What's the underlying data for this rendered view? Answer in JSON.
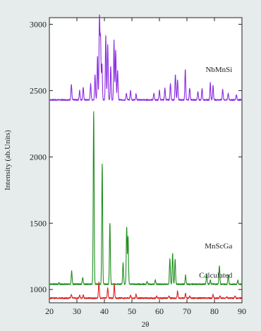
{
  "chart_data": {
    "type": "line",
    "title": "",
    "xlabel": "2θ",
    "ylabel": "Intensity (ab.Units)",
    "xlim": [
      20,
      90
    ],
    "ylim": [
      900,
      3050
    ],
    "grid": false,
    "legend": "none",
    "x_ticks": [
      "20",
      "30",
      "40",
      "50",
      "60",
      "70",
      "80",
      "90"
    ],
    "y_ticks": [
      "1000",
      "1500",
      "2000",
      "2500",
      "3000"
    ],
    "background": "#e6eceb",
    "plot_background": "#ffffff",
    "series": [
      {
        "name": "NbMnSi",
        "color": "#8b2be2",
        "baseline": 2430,
        "peaks": [
          [
            28.0,
            2545
          ],
          [
            31.0,
            2500
          ],
          [
            32.3,
            2525
          ],
          [
            35.0,
            2550
          ],
          [
            36.6,
            2620
          ],
          [
            37.5,
            2760
          ],
          [
            38.2,
            3050
          ],
          [
            38.6,
            2900
          ],
          [
            39.1,
            2700
          ],
          [
            40.5,
            2920
          ],
          [
            41.2,
            2850
          ],
          [
            42.3,
            2680
          ],
          [
            43.5,
            2880
          ],
          [
            44.1,
            2800
          ],
          [
            44.8,
            2650
          ],
          [
            48.0,
            2480
          ],
          [
            49.5,
            2500
          ],
          [
            51.5,
            2475
          ],
          [
            58.0,
            2480
          ],
          [
            60.0,
            2500
          ],
          [
            62.0,
            2520
          ],
          [
            64.0,
            2550
          ],
          [
            65.8,
            2620
          ],
          [
            66.6,
            2580
          ],
          [
            69.4,
            2660
          ],
          [
            71.0,
            2520
          ],
          [
            74.0,
            2490
          ],
          [
            75.5,
            2520
          ],
          [
            78.5,
            2560
          ],
          [
            79.5,
            2540
          ],
          [
            83.0,
            2510
          ],
          [
            85.0,
            2480
          ],
          [
            88.0,
            2470
          ]
        ]
      },
      {
        "name": "MnScGa",
        "color": "#1f8f1f",
        "baseline": 1040,
        "peaks": [
          [
            23.5,
            1050
          ],
          [
            28.1,
            1140
          ],
          [
            32.1,
            1090
          ],
          [
            36.1,
            2340
          ],
          [
            39.2,
            1950
          ],
          [
            42.0,
            1500
          ],
          [
            46.8,
            1200
          ],
          [
            48.1,
            1470
          ],
          [
            48.6,
            1400
          ],
          [
            55.5,
            1060
          ],
          [
            58.5,
            1075
          ],
          [
            63.8,
            1230
          ],
          [
            64.8,
            1270
          ],
          [
            65.7,
            1230
          ],
          [
            69.5,
            1110
          ],
          [
            77.2,
            1120
          ],
          [
            78.5,
            1070
          ],
          [
            81.8,
            1180
          ],
          [
            85.0,
            1110
          ],
          [
            88.5,
            1070
          ]
        ]
      },
      {
        "name": "Calculated",
        "color": "#dd2222",
        "baseline": 935,
        "peaks": [
          [
            28.0,
            965
          ],
          [
            31.0,
            955
          ],
          [
            32.3,
            958
          ],
          [
            38.0,
            1060
          ],
          [
            41.2,
            1010
          ],
          [
            43.6,
            1040
          ],
          [
            49.5,
            958
          ],
          [
            51.5,
            963
          ],
          [
            59.0,
            950
          ],
          [
            63.5,
            950
          ],
          [
            66.6,
            990
          ],
          [
            69.5,
            970
          ],
          [
            71.0,
            948
          ],
          [
            79.5,
            962
          ],
          [
            82.0,
            950
          ],
          [
            84.5,
            948
          ],
          [
            87.5,
            952
          ]
        ]
      }
    ]
  }
}
